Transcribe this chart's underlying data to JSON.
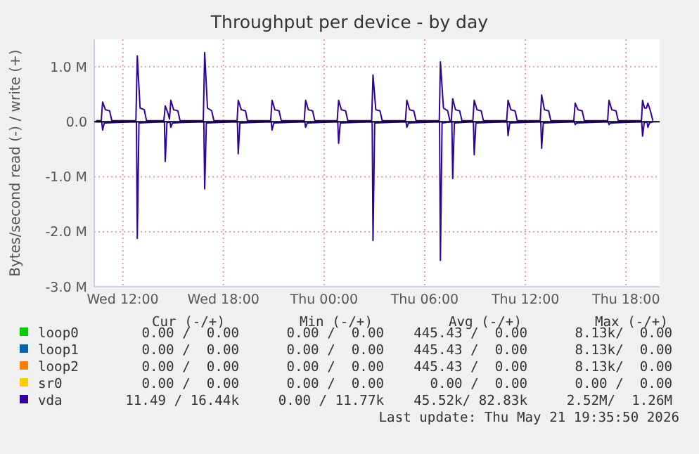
{
  "chart_data": {
    "type": "line",
    "title": "Throughput per device - by day",
    "ylabel": "Bytes/second read (-) / write (+)",
    "xlim": [
      "2026-05-20T10:18",
      "2026-05-21T20:00"
    ],
    "xticks": [
      {
        "value": "2026-05-20T12:00",
        "label": "Wed 12:00"
      },
      {
        "value": "2026-05-20T18:00",
        "label": "Wed 18:00"
      },
      {
        "value": "2026-05-21T00:00",
        "label": "Thu 00:00"
      },
      {
        "value": "2026-05-21T06:00",
        "label": "Thu 06:00"
      },
      {
        "value": "2026-05-21T12:00",
        "label": "Thu 12:00"
      },
      {
        "value": "2026-05-21T18:00",
        "label": "Thu 18:00"
      }
    ],
    "ylim": [
      -3000000,
      1500000
    ],
    "yticks": [
      {
        "value": -3000000,
        "label": "-3.0 M"
      },
      {
        "value": -2000000,
        "label": "-2.0 M"
      },
      {
        "value": -1000000,
        "label": "-1.0 M"
      },
      {
        "value": 0,
        "label": "0.0"
      },
      {
        "value": 1000000,
        "label": "1.0 M"
      }
    ],
    "grid": true,
    "legend": "bottom",
    "marker": "none",
    "line_style": "solid",
    "ref_lines": [
      {
        "axis": "y",
        "value": 0,
        "color": "#000000"
      }
    ],
    "series": [
      {
        "name": "loop0",
        "color": "#00cc00"
      },
      {
        "name": "loop1",
        "color": "#0066b3"
      },
      {
        "name": "loop2",
        "color": "#ff8000"
      },
      {
        "name": "sr0",
        "color": "#ffcc00"
      },
      {
        "name": "vda",
        "color": "#330099",
        "x": [
          "2026-05-20T10:24",
          "2026-05-20T10:43",
          "2026-05-20T10:48",
          "2026-05-20T10:58",
          "2026-05-20T11:13",
          "2026-05-20T11:21",
          "2026-05-20T12:47",
          "2026-05-20T12:52",
          "2026-05-20T13:02",
          "2026-05-20T13:17",
          "2026-05-20T13:25",
          "2026-05-20T14:27",
          "2026-05-20T14:32",
          "2026-05-20T14:42",
          "2026-05-20T14:47",
          "2026-05-20T14:52",
          "2026-05-20T15:02",
          "2026-05-20T15:17",
          "2026-05-20T15:25",
          "2026-05-20T16:48",
          "2026-05-20T16:53",
          "2026-05-20T17:03",
          "2026-05-20T17:18",
          "2026-05-20T17:26",
          "2026-05-20T18:49",
          "2026-05-20T18:53",
          "2026-05-20T19:04",
          "2026-05-20T19:19",
          "2026-05-20T19:26",
          "2026-05-20T20:49",
          "2026-05-20T20:54",
          "2026-05-20T21:04",
          "2026-05-20T21:19",
          "2026-05-20T21:27",
          "2026-05-20T22:49",
          "2026-05-20T22:54",
          "2026-05-20T23:04",
          "2026-05-20T23:19",
          "2026-05-20T23:27",
          "2026-05-21T00:47",
          "2026-05-21T00:52",
          "2026-05-21T01:02",
          "2026-05-21T01:17",
          "2026-05-21T01:25",
          "2026-05-21T02:50",
          "2026-05-21T02:55",
          "2026-05-21T03:05",
          "2026-05-21T03:20",
          "2026-05-21T03:28",
          "2026-05-21T04:51",
          "2026-05-21T04:56",
          "2026-05-21T05:06",
          "2026-05-21T05:21",
          "2026-05-21T05:29",
          "2026-05-21T06:52",
          "2026-05-21T06:56",
          "2026-05-21T07:07",
          "2026-05-21T07:22",
          "2026-05-21T07:30",
          "2026-05-21T07:35",
          "2026-05-21T07:40",
          "2026-05-21T07:50",
          "2026-05-21T08:05",
          "2026-05-21T08:13",
          "2026-05-21T08:52",
          "2026-05-21T08:57",
          "2026-05-21T09:07",
          "2026-05-21T09:22",
          "2026-05-21T09:30",
          "2026-05-21T10:53",
          "2026-05-21T10:58",
          "2026-05-21T11:08",
          "2026-05-21T11:23",
          "2026-05-21T11:31",
          "2026-05-21T12:53",
          "2026-05-21T12:58",
          "2026-05-21T13:08",
          "2026-05-21T13:23",
          "2026-05-21T13:31",
          "2026-05-21T14:53",
          "2026-05-21T14:58",
          "2026-05-21T15:08",
          "2026-05-21T15:23",
          "2026-05-21T15:31",
          "2026-05-21T16:54",
          "2026-05-21T16:59",
          "2026-05-21T17:09",
          "2026-05-21T17:24",
          "2026-05-21T17:32",
          "2026-05-21T18:55",
          "2026-05-21T18:59",
          "2026-05-21T19:06",
          "2026-05-21T19:13",
          "2026-05-21T19:18",
          "2026-05-21T19:27",
          "2026-05-21T19:36"
        ],
        "values": [
          20000,
          20000,
          360000,
          220000,
          200000,
          20000,
          20000,
          1200000,
          250000,
          220000,
          20000,
          20000,
          290000,
          150000,
          50000,
          390000,
          220000,
          200000,
          20000,
          20000,
          1260000,
          250000,
          200000,
          20000,
          20000,
          390000,
          220000,
          200000,
          20000,
          20000,
          390000,
          220000,
          200000,
          20000,
          20000,
          390000,
          220000,
          200000,
          20000,
          20000,
          390000,
          220000,
          200000,
          20000,
          20000,
          850000,
          220000,
          200000,
          20000,
          20000,
          390000,
          220000,
          200000,
          20000,
          20000,
          1090000,
          250000,
          200000,
          20000,
          20000,
          420000,
          220000,
          200000,
          20000,
          20000,
          390000,
          220000,
          200000,
          20000,
          20000,
          390000,
          220000,
          200000,
          20000,
          20000,
          490000,
          220000,
          200000,
          20000,
          20000,
          340000,
          220000,
          200000,
          20000,
          20000,
          390000,
          220000,
          200000,
          20000,
          20000,
          390000,
          250000,
          250000,
          340000,
          200000,
          20000
        ]
      },
      {
        "color": "#330099",
        "x": [
          "2026-05-20T10:24",
          "2026-05-20T10:45",
          "2026-05-20T10:48",
          "2026-05-20T10:54",
          "2026-05-20T12:49",
          "2026-05-20T12:52",
          "2026-05-20T12:58",
          "2026-05-20T14:29",
          "2026-05-20T14:32",
          "2026-05-20T14:38",
          "2026-05-20T14:49",
          "2026-05-20T14:52",
          "2026-05-20T14:58",
          "2026-05-20T16:50",
          "2026-05-20T16:53",
          "2026-05-20T16:59",
          "2026-05-20T18:50",
          "2026-05-20T18:53",
          "2026-05-20T18:59",
          "2026-05-20T20:51",
          "2026-05-20T20:54",
          "2026-05-20T21:00",
          "2026-05-20T22:51",
          "2026-05-20T22:54",
          "2026-05-20T23:00",
          "2026-05-21T00:49",
          "2026-05-21T00:52",
          "2026-05-21T00:58",
          "2026-05-21T02:52",
          "2026-05-21T02:55",
          "2026-05-21T03:01",
          "2026-05-21T04:53",
          "2026-05-21T04:56",
          "2026-05-21T05:02",
          "2026-05-21T06:53",
          "2026-05-21T06:56",
          "2026-05-21T07:02",
          "2026-05-21T07:37",
          "2026-05-21T07:40",
          "2026-05-21T07:46",
          "2026-05-21T08:54",
          "2026-05-21T08:57",
          "2026-05-21T09:03",
          "2026-05-21T10:55",
          "2026-05-21T10:58",
          "2026-05-21T11:04",
          "2026-05-21T12:55",
          "2026-05-21T12:58",
          "2026-05-21T13:04",
          "2026-05-21T14:55",
          "2026-05-21T14:58",
          "2026-05-21T15:04",
          "2026-05-21T16:56",
          "2026-05-21T16:59",
          "2026-05-21T17:05",
          "2026-05-21T18:56",
          "2026-05-21T18:59",
          "2026-05-21T19:05",
          "2026-05-21T19:15",
          "2026-05-21T19:18",
          "2026-05-21T19:24",
          "2026-05-21T19:36"
        ],
        "values": [
          0,
          0,
          -150000,
          -20000,
          0,
          -2120000,
          -20000,
          0,
          -720000,
          -20000,
          0,
          -100000,
          -20000,
          0,
          -1220000,
          -20000,
          0,
          -580000,
          -20000,
          0,
          -150000,
          -20000,
          0,
          -100000,
          -20000,
          0,
          -390000,
          -20000,
          0,
          -2160000,
          -20000,
          0,
          -100000,
          -20000,
          0,
          -2520000,
          -20000,
          0,
          -1030000,
          -20000,
          0,
          -600000,
          -20000,
          0,
          -250000,
          -20000,
          0,
          -480000,
          -20000,
          0,
          -50000,
          -20000,
          0,
          -50000,
          -20000,
          0,
          -260000,
          -20000,
          0,
          -100000,
          -20000,
          0
        ]
      }
    ],
    "annotations": [
      "Cur (-/+)",
      "Min (-/+)",
      "Avg (-/+)",
      "Max (-/+)",
      "0.00 /  0.00",
      "0.00 /  0.00",
      "445.43 /  0.00",
      "8.13k/  0.00",
      "0.00 /  0.00",
      "0.00 /  0.00",
      "445.43 /  0.00",
      "8.13k/  0.00",
      "0.00 /  0.00",
      "0.00 /  0.00",
      "445.43 /  0.00",
      "8.13k/  0.00",
      "0.00 /  0.00",
      "0.00 /  0.00",
      "0.00 /  0.00",
      "0.00 /  0.00",
      "11.49 / 16.44k",
      "0.00 / 11.77k",
      "45.52k/ 82.83k",
      "2.52M/  1.26M",
      "Last update: Thu May 21 19:35:50 2026"
    ]
  }
}
